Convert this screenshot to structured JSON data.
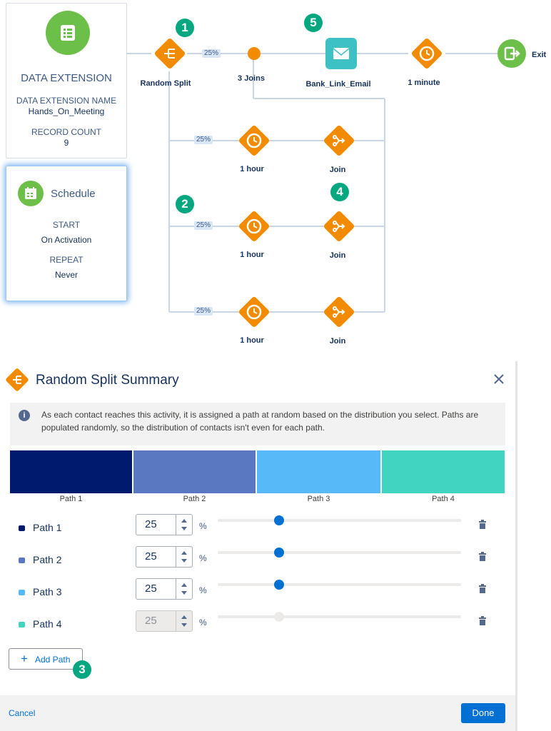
{
  "canvas": {
    "data_extension": {
      "title": "DATA EXTENSION",
      "name_label": "DATA EXTENSION NAME",
      "name_value": "Hands_On_Meeting",
      "count_label": "RECORD COUNT",
      "count_value": "9"
    },
    "schedule": {
      "title": "Schedule",
      "start_label": "START",
      "start_value": "On Activation",
      "repeat_label": "REPEAT",
      "repeat_value": "Never"
    },
    "nodes": {
      "random_split": "Random Split",
      "joins": "3 Joins",
      "email": "Bank_Link_Email",
      "wait_main": "1 minute",
      "exit": "Exit",
      "wait1": "1 hour",
      "wait2": "1 hour",
      "wait3": "1 hour",
      "join1": "Join",
      "join2": "Join",
      "join3": "Join"
    },
    "percents": [
      "25%",
      "25%",
      "25%",
      "25%"
    ],
    "badges": [
      "1",
      "2",
      "3",
      "4",
      "5"
    ]
  },
  "summary": {
    "title": "Random Split Summary",
    "info": "As each contact reaches this activity, it is assigned a path at random based on the distribution you select. Paths are populated randomly, so the distribution of contacts isn't even for each path.",
    "bar_labels": [
      "Path 1",
      "Path 2",
      "Path 3",
      "Path 4"
    ],
    "paths": [
      {
        "name": "Path 1",
        "value": "25",
        "percent_sign": "%",
        "color": "#001a6e",
        "disabled": false
      },
      {
        "name": "Path 2",
        "value": "25",
        "percent_sign": "%",
        "color": "#5a78c2",
        "disabled": false
      },
      {
        "name": "Path 3",
        "value": "25",
        "percent_sign": "%",
        "color": "#58b9f9",
        "disabled": false
      },
      {
        "name": "Path 4",
        "value": "25",
        "percent_sign": "%",
        "color": "#41d4c0",
        "disabled": true
      }
    ],
    "add_path": "Add Path",
    "cancel": "Cancel",
    "done": "Done"
  },
  "colors": {
    "orange": "#f28b00",
    "green": "#6cc04a",
    "teal_email": "#3ec1c5",
    "blue_button": "#0070d2"
  }
}
